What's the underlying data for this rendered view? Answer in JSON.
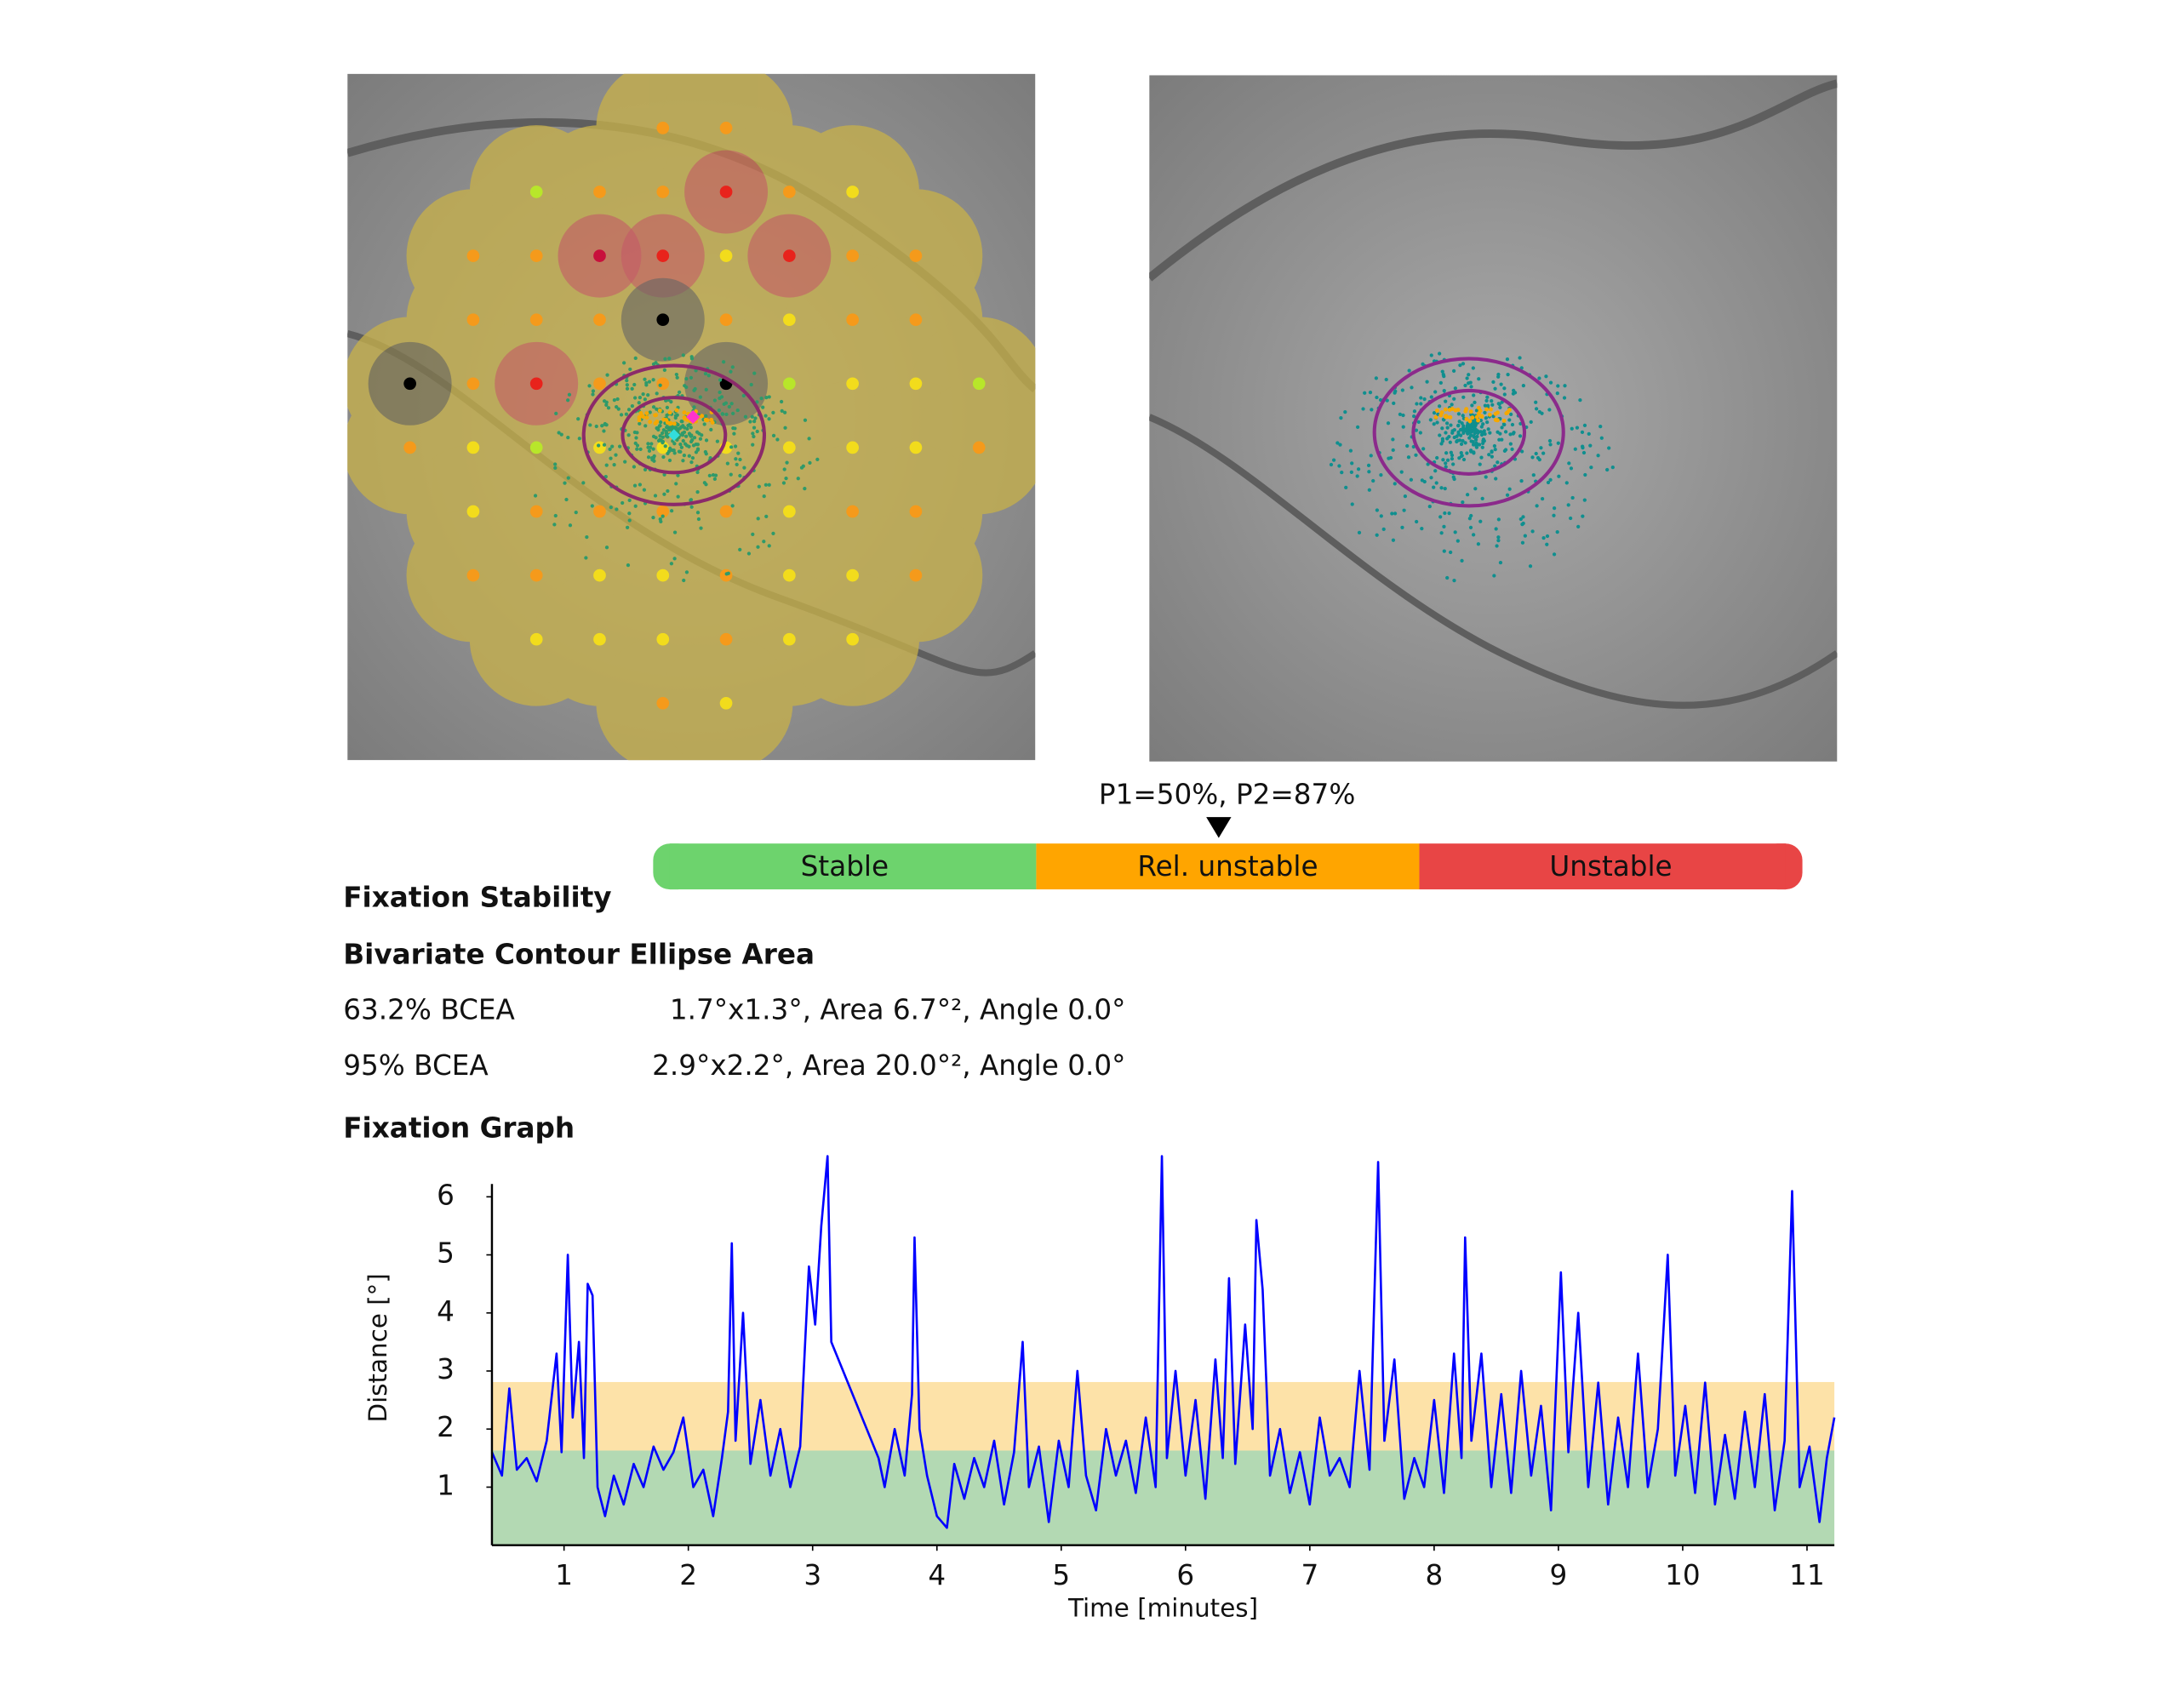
{
  "stability": {
    "marker_label": "P1=50%, P2=87%",
    "segments": [
      {
        "label": "Stable",
        "color": "#6dd36d"
      },
      {
        "label": "Rel. unstable",
        "color": "#ffa500"
      },
      {
        "label": "Unstable",
        "color": "#e84545"
      }
    ]
  },
  "fixation_stability": {
    "title": "Fixation Stability",
    "bcea_title": "Bivariate Contour Ellipse Area",
    "rows": [
      [
        "63.2% BCEA",
        "1.7°x1.3°, Area 6.7°², Angle 0.0°"
      ],
      [
        "95% BCEA",
        "2.9°x2.2°, Area 20.0°², Angle 0.0°"
      ]
    ]
  },
  "chart_data": {
    "type": "line",
    "title": "Fixation Graph",
    "xlabel": "Time [minutes]",
    "ylabel": "Distance [°]",
    "x": [
      0.42,
      0.5,
      0.56,
      0.62,
      0.7,
      0.78,
      0.86,
      0.94,
      0.98,
      1.03,
      1.07,
      1.12,
      1.16,
      1.19,
      1.23,
      1.27,
      1.33,
      1.4,
      1.48,
      1.56,
      1.64,
      1.72,
      1.8,
      1.88,
      1.96,
      2.04,
      2.12,
      2.2,
      2.27,
      2.32,
      2.35,
      2.38,
      2.44,
      2.5,
      2.58,
      2.66,
      2.74,
      2.82,
      2.9,
      2.94,
      2.97,
      3.02,
      3.07,
      3.12,
      3.15,
      3.53,
      3.58,
      3.66,
      3.74,
      3.8,
      3.82,
      3.86,
      3.92,
      4.0,
      4.08,
      4.14,
      4.22,
      4.3,
      4.38,
      4.46,
      4.54,
      4.62,
      4.69,
      4.74,
      4.82,
      4.9,
      4.98,
      5.06,
      5.13,
      5.2,
      5.28,
      5.36,
      5.44,
      5.52,
      5.6,
      5.68,
      5.76,
      5.81,
      5.85,
      5.92,
      6.0,
      6.08,
      6.16,
      6.24,
      6.3,
      6.35,
      6.4,
      6.48,
      6.54,
      6.57,
      6.62,
      6.68,
      6.76,
      6.84,
      6.92,
      7.0,
      7.08,
      7.16,
      7.24,
      7.32,
      7.4,
      7.48,
      7.55,
      7.6,
      7.68,
      7.76,
      7.84,
      7.92,
      8.0,
      8.08,
      8.16,
      8.22,
      8.25,
      8.3,
      8.38,
      8.46,
      8.54,
      8.62,
      8.7,
      8.78,
      8.86,
      8.94,
      9.02,
      9.08,
      9.16,
      9.24,
      9.32,
      9.4,
      9.48,
      9.56,
      9.64,
      9.72,
      9.8,
      9.88,
      9.94,
      10.02,
      10.1,
      10.18,
      10.26,
      10.34,
      10.42,
      10.5,
      10.58,
      10.66,
      10.74,
      10.82,
      10.88,
      10.94,
      11.02,
      11.1,
      11.16,
      11.22
    ],
    "series": [
      {
        "color": "#0000ff",
        "values": [
          1.6,
          1.2,
          2.7,
          1.3,
          1.5,
          1.1,
          1.8,
          3.3,
          1.6,
          5.0,
          2.2,
          3.5,
          1.5,
          4.5,
          4.3,
          1.0,
          0.5,
          1.2,
          0.7,
          1.4,
          1.0,
          1.7,
          1.3,
          1.6,
          2.2,
          1.0,
          1.3,
          0.5,
          1.5,
          2.3,
          5.2,
          1.8,
          4.0,
          1.4,
          2.5,
          1.2,
          2.0,
          1.0,
          1.7,
          3.5,
          4.8,
          3.8,
          5.5,
          6.7,
          3.5,
          1.5,
          1.0,
          2.0,
          1.2,
          2.6,
          5.3,
          2.0,
          1.2,
          0.5,
          0.3,
          1.4,
          0.8,
          1.5,
          1.0,
          1.8,
          0.7,
          1.6,
          3.5,
          1.0,
          1.7,
          0.4,
          1.8,
          1.0,
          3.0,
          1.2,
          0.6,
          2.0,
          1.2,
          1.8,
          0.9,
          2.2,
          1.0,
          6.7,
          1.5,
          3.0,
          1.2,
          2.5,
          0.8,
          3.2,
          1.5,
          4.6,
          1.4,
          3.8,
          2.0,
          5.6,
          4.4,
          1.2,
          2.0,
          0.9,
          1.6,
          0.7,
          2.2,
          1.2,
          1.5,
          1.0,
          3.0,
          1.3,
          6.6,
          1.8,
          3.2,
          0.8,
          1.5,
          1.0,
          2.5,
          0.9,
          3.3,
          1.5,
          5.3,
          1.8,
          3.3,
          1.0,
          2.6,
          0.9,
          3.0,
          1.2,
          2.4,
          0.6,
          4.7,
          1.6,
          4.0,
          1.0,
          2.8,
          0.7,
          2.2,
          1.0,
          3.3,
          1.0,
          2.0,
          5.0,
          1.2,
          2.4,
          0.9,
          2.8,
          0.7,
          1.9,
          0.8,
          2.3,
          1.0,
          2.6,
          0.6,
          1.8,
          6.1,
          1.0,
          1.7,
          0.4,
          1.5,
          2.2
        ]
      }
    ],
    "xlim": [
      0.42,
      11.22
    ],
    "ylim": [
      0,
      6.7
    ],
    "xticks": [
      1,
      2,
      3,
      4,
      5,
      6,
      7,
      8,
      9,
      10,
      11
    ],
    "yticks": [
      1,
      2,
      3,
      4,
      5,
      6
    ],
    "bands": [
      {
        "from": 0,
        "to": 1.63,
        "color": "#b3d9b3"
      },
      {
        "from": 1.63,
        "to": 2.81,
        "color": "#fde2a8"
      }
    ]
  }
}
